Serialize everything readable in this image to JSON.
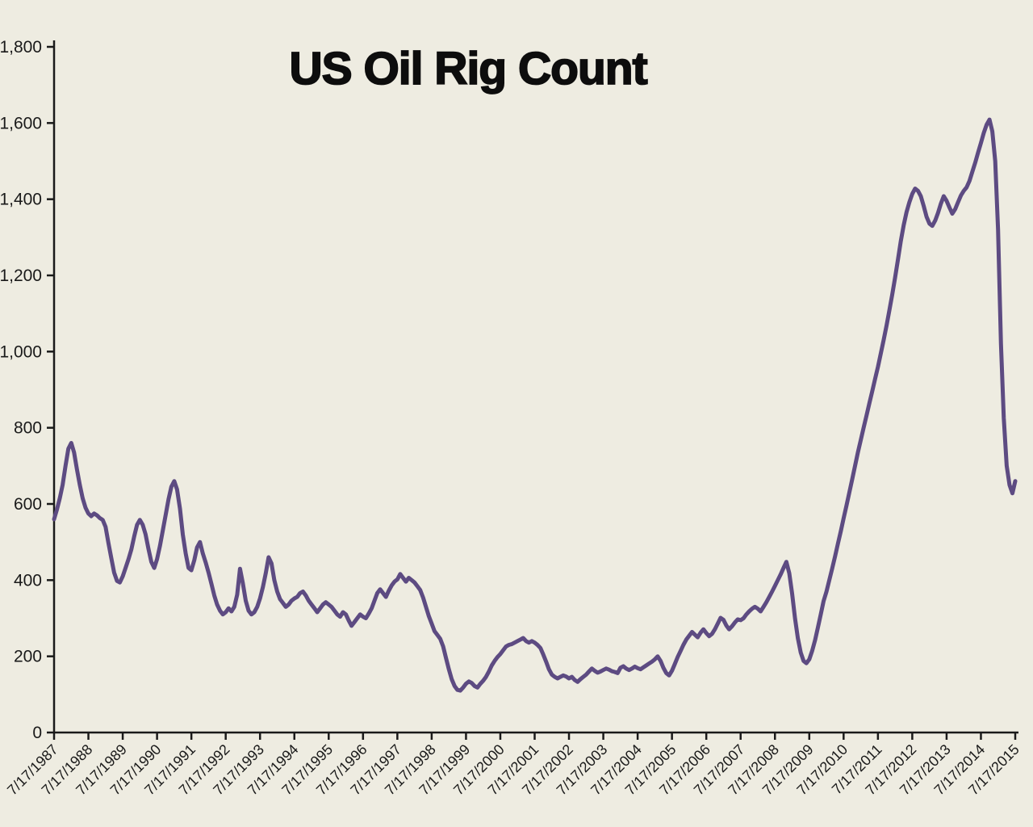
{
  "page": {
    "background_color": "#EEECE1"
  },
  "chart_data": {
    "type": "line",
    "title": "US Oil Rig Count",
    "series_name": "US Oil Rig Count",
    "line_color": "#5D4B82",
    "axis_color": "#1a1a1a",
    "background_color": "#EEECE1",
    "grid": false,
    "legend": false,
    "ylim": [
      0,
      1800
    ],
    "y_tick_interval": 200,
    "y_tick_labels": [
      "0",
      "200",
      "400",
      "600",
      "800",
      "1,000",
      "1,200",
      "1,400",
      "1,600",
      "1,800"
    ],
    "x_tick_labels": [
      "7/17/1987",
      "7/17/1988",
      "7/17/1989",
      "7/17/1990",
      "7/17/1991",
      "7/17/1992",
      "7/17/1993",
      "7/17/1994",
      "7/17/1995",
      "7/17/1996",
      "7/17/1997",
      "7/17/1998",
      "7/17/1999",
      "7/17/2000",
      "7/17/2001",
      "7/17/2002",
      "7/17/2003",
      "7/17/2004",
      "7/17/2005",
      "7/17/2006",
      "7/17/2007",
      "7/17/2008",
      "7/17/2009",
      "7/17/2010",
      "7/17/2011",
      "7/17/2012",
      "7/17/2013",
      "7/17/2014",
      "7/17/2015"
    ],
    "x_tick_rotation_deg": 45,
    "x_start": "7/17/1987",
    "x_end": "7/17/2015",
    "x_frequency": "monthly (estimated from weekly line)",
    "values": [
      560,
      585,
      615,
      650,
      700,
      745,
      760,
      735,
      690,
      650,
      615,
      590,
      575,
      568,
      575,
      570,
      563,
      558,
      540,
      498,
      458,
      420,
      398,
      394,
      410,
      432,
      455,
      480,
      515,
      545,
      558,
      545,
      520,
      482,
      448,
      432,
      455,
      490,
      530,
      570,
      612,
      645,
      660,
      638,
      588,
      520,
      470,
      432,
      426,
      452,
      486,
      500,
      470,
      446,
      420,
      390,
      360,
      336,
      320,
      310,
      316,
      326,
      318,
      330,
      362,
      430,
      392,
      346,
      320,
      310,
      316,
      330,
      352,
      382,
      418,
      460,
      444,
      400,
      370,
      350,
      340,
      330,
      336,
      346,
      352,
      356,
      366,
      370,
      360,
      346,
      336,
      326,
      316,
      326,
      336,
      342,
      336,
      330,
      320,
      310,
      304,
      316,
      310,
      294,
      280,
      290,
      300,
      310,
      304,
      300,
      312,
      326,
      346,
      366,
      376,
      366,
      356,
      372,
      386,
      396,
      402,
      416,
      406,
      396,
      406,
      400,
      394,
      384,
      374,
      354,
      330,
      306,
      286,
      266,
      256,
      246,
      226,
      196,
      166,
      140,
      122,
      112,
      110,
      118,
      128,
      134,
      130,
      122,
      118,
      128,
      136,
      146,
      160,
      176,
      188,
      198,
      206,
      216,
      226,
      230,
      232,
      236,
      240,
      244,
      248,
      240,
      236,
      240,
      236,
      230,
      222,
      205,
      186,
      166,
      152,
      146,
      142,
      146,
      150,
      147,
      142,
      146,
      138,
      133,
      140,
      146,
      152,
      160,
      168,
      162,
      157,
      160,
      164,
      168,
      165,
      161,
      159,
      156,
      170,
      174,
      168,
      164,
      168,
      173,
      169,
      166,
      171,
      176,
      181,
      186,
      192,
      200,
      188,
      170,
      156,
      150,
      162,
      180,
      198,
      214,
      230,
      244,
      254,
      264,
      257,
      250,
      262,
      271,
      261,
      253,
      259,
      271,
      286,
      301,
      296,
      281,
      271,
      279,
      289,
      297,
      295,
      300,
      310,
      318,
      325,
      330,
      325,
      318,
      330,
      342,
      356,
      370,
      385,
      400,
      415,
      432,
      448,
      418,
      365,
      300,
      248,
      210,
      188,
      182,
      192,
      214,
      242,
      275,
      310,
      345,
      370,
      400,
      430,
      462,
      495,
      528,
      562,
      596,
      630,
      665,
      700,
      735,
      768,
      800,
      832,
      864,
      896,
      928,
      960,
      995,
      1030,
      1068,
      1108,
      1150,
      1194,
      1242,
      1290,
      1332,
      1366,
      1392,
      1414,
      1428,
      1422,
      1408,
      1382,
      1354,
      1336,
      1330,
      1344,
      1364,
      1388,
      1408,
      1396,
      1378,
      1362,
      1374,
      1392,
      1410,
      1422,
      1431,
      1448,
      1472,
      1496,
      1522,
      1548,
      1574,
      1596,
      1609,
      1578,
      1500,
      1320,
      1020,
      825,
      700,
      650,
      628,
      660
    ]
  }
}
